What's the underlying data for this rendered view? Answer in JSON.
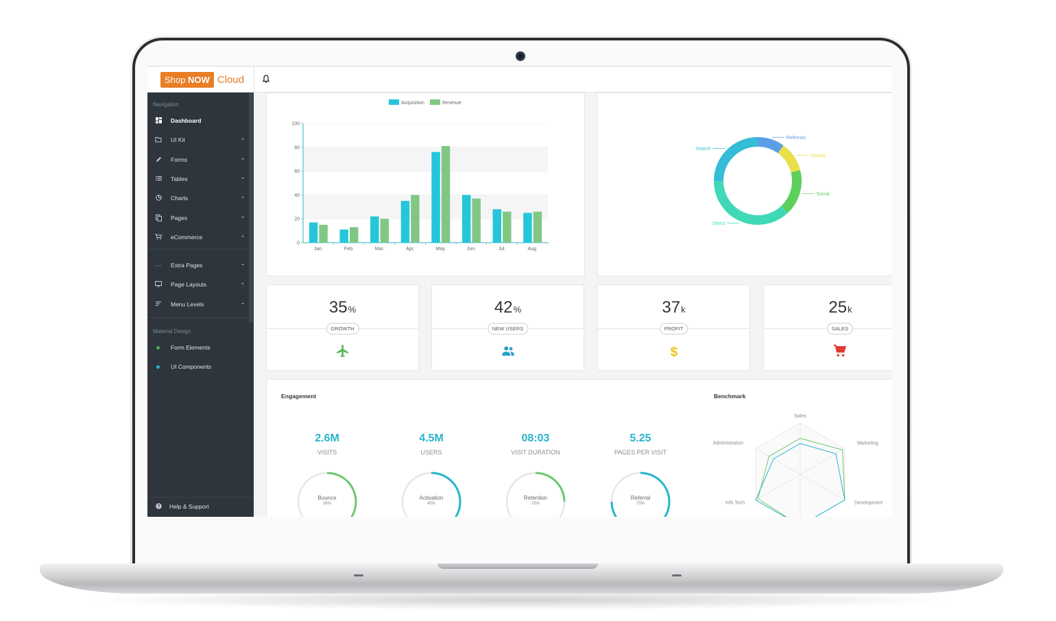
{
  "brand": {
    "shop": "Shop",
    "now": "NOW",
    "cloud": "Cloud"
  },
  "sidebar": {
    "header_nav": "Navigation",
    "items": [
      {
        "label": "Dashboard",
        "icon": "dashboard-icon",
        "active": true
      },
      {
        "label": "UI Kit",
        "icon": "folder-icon"
      },
      {
        "label": "Forms",
        "icon": "pencil-icon"
      },
      {
        "label": "Tables",
        "icon": "list-icon"
      },
      {
        "label": "Charts",
        "icon": "pie-icon"
      },
      {
        "label": "Pages",
        "icon": "copy-icon"
      },
      {
        "label": "eCommerce",
        "icon": "cart-icon"
      },
      {
        "label": "Extra Pages",
        "icon": "dots-icon"
      },
      {
        "label": "Page Layouts",
        "icon": "monitor-icon"
      },
      {
        "label": "Menu Levels",
        "icon": "menu-icon"
      }
    ],
    "header_material": "Material Design",
    "material_items": [
      {
        "label": "Form Elements",
        "color": "#4caf50"
      },
      {
        "label": "UI Components",
        "color": "#26b5cc"
      }
    ],
    "help": "Help & Support"
  },
  "bar_chart": {
    "legend": [
      "Acquisition",
      "Revenue"
    ],
    "colors": [
      "#26c6da",
      "#81c784"
    ]
  },
  "donut_chart": {
    "labels": [
      "Referrals",
      "Display",
      "Social",
      "Direct",
      "Search"
    ],
    "colors": [
      "#5c9ee6",
      "#e8e04a",
      "#5ccf5c",
      "#3fd9b8",
      "#35bcd6"
    ]
  },
  "stats": [
    {
      "value": "35",
      "unit": "%",
      "label": "GROWTH",
      "icon": "airplane-icon",
      "color": "#5ab85a"
    },
    {
      "value": "42",
      "unit": "%",
      "label": "NEW USERS",
      "icon": "users-icon",
      "color": "#26a0c8"
    },
    {
      "value": "37",
      "unit": "k",
      "label": "PROFIT",
      "icon": "dollar-icon",
      "color": "#f2c11a"
    },
    {
      "value": "25",
      "unit": "k",
      "label": "SALES",
      "icon": "cart-icon",
      "color": "#e53935"
    }
  ],
  "engagement": {
    "title": "Engagement",
    "metrics": [
      {
        "value": "2.6M",
        "label": "VISITS"
      },
      {
        "value": "4.5M",
        "label": "USERS"
      },
      {
        "value": "08:03",
        "label": "VISIT DURATION"
      },
      {
        "value": "5.25",
        "label": "PAGES PER VISIT"
      }
    ],
    "gauges": [
      {
        "label": "Bounce",
        "pct": "36%",
        "value": 0.36,
        "color": "#6cc76c"
      },
      {
        "label": "Activation",
        "pct": "45%",
        "value": 0.45,
        "color": "#26b5cc"
      },
      {
        "label": "Retention",
        "pct": "25%",
        "value": 0.25,
        "color": "#6cc76c"
      },
      {
        "label": "Referral",
        "pct": "75%",
        "value": 0.75,
        "color": "#26b5cc"
      }
    ]
  },
  "benchmark": {
    "title": "Benchmark",
    "axes": [
      "Sales",
      "Marketing",
      "Development",
      "Info Tech",
      "Administration"
    ]
  },
  "chart_data": [
    {
      "type": "bar",
      "categories": [
        "Jan.",
        "Feb.",
        "Mar.",
        "Apr.",
        "May.",
        "Jun.",
        "Jul.",
        "Aug."
      ],
      "series": [
        {
          "name": "Acquisition",
          "values": [
            17,
            11,
            22,
            35,
            76,
            40,
            28,
            25
          ]
        },
        {
          "name": "Revenue",
          "values": [
            15,
            13,
            20,
            40,
            81,
            37,
            26,
            26
          ]
        }
      ],
      "yticks": [
        0,
        20,
        40,
        60,
        80,
        100
      ],
      "ylim": [
        0,
        100
      ],
      "grid": true,
      "legend": "top"
    },
    {
      "type": "pie",
      "categories": [
        "Referrals",
        "Display",
        "Social",
        "Direct",
        "Search"
      ],
      "values": [
        10,
        11,
        17,
        37,
        25
      ],
      "legend": "labels"
    },
    {
      "type": "radar",
      "categories": [
        "Sales",
        "Marketing",
        "Development",
        "Info Tech",
        "Administration"
      ],
      "series": [
        {
          "values": [
            70,
            95,
            100,
            95,
            70
          ]
        },
        {
          "values": [
            60,
            80,
            100,
            100,
            60
          ]
        }
      ]
    }
  ]
}
